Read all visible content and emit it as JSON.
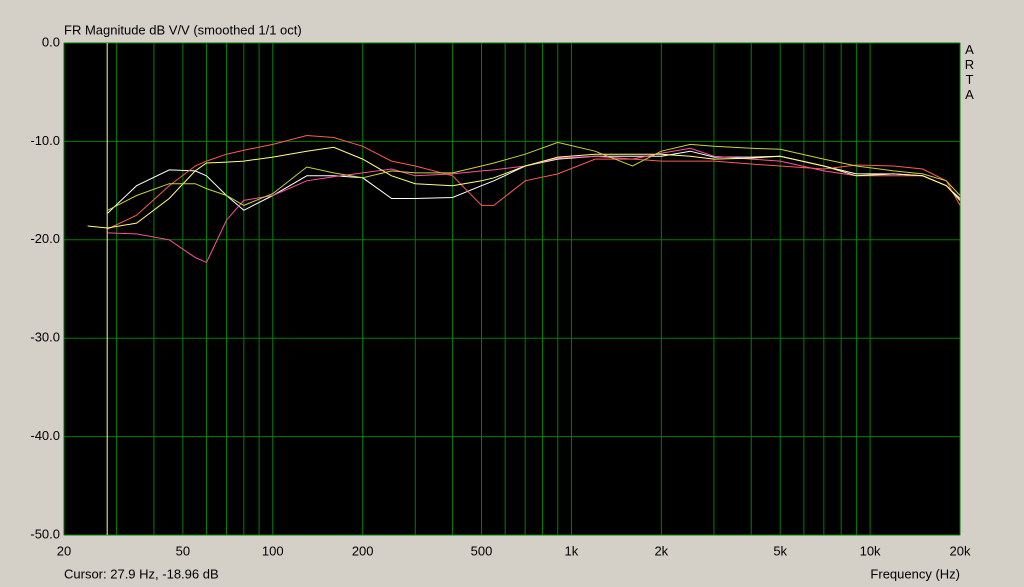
{
  "chart_data": {
    "type": "line",
    "title": "FR Magnitude dB V/V (smoothed 1/1 oct)",
    "x_label": "Frequency (Hz)",
    "watermark": "ARTA",
    "cursor": {
      "x": 27.9,
      "label": "Cursor: 27.9 Hz, -18.96 dB",
      "color": "#ffff80"
    },
    "x_log": true,
    "grid": true,
    "grid_color": "#008000",
    "background": "#000000",
    "xlim": [
      20,
      20000
    ],
    "xticks": [
      20,
      50,
      100,
      200,
      500,
      {
        "value": 1000,
        "label": "1k"
      },
      {
        "value": 2000,
        "label": "2k"
      },
      {
        "value": 5000,
        "label": "5k"
      },
      {
        "value": 10000,
        "label": "10k"
      },
      {
        "value": 20000,
        "label": "20k"
      }
    ],
    "x_minor_grid": [
      30,
      40,
      60,
      70,
      80,
      90,
      300,
      400,
      600,
      700,
      800,
      900,
      3000,
      4000,
      6000,
      7000,
      8000,
      9000
    ],
    "ylim": [
      -50,
      0
    ],
    "yticks": [
      {
        "value": 0,
        "label": "0.0"
      },
      {
        "value": -10,
        "label": "-10.0"
      },
      {
        "value": -20,
        "label": "-20.0"
      },
      {
        "value": -30,
        "label": "-30.0"
      },
      {
        "value": -40,
        "label": "-40.0"
      },
      {
        "value": -50,
        "label": "-50.0"
      }
    ],
    "x": [
      24,
      28,
      35,
      45,
      55,
      60,
      70,
      80,
      100,
      130,
      160,
      200,
      250,
      300,
      400,
      500,
      550,
      700,
      900,
      1200,
      1600,
      2000,
      2500,
      3000,
      4000,
      5000,
      7000,
      9000,
      12000,
      15000,
      18000,
      20000
    ],
    "series": [
      {
        "color": "#ffffff",
        "values": [
          null,
          -17.3,
          -14.5,
          -12.9,
          -13,
          -13.5,
          -15.5,
          -17,
          -15.5,
          -13.5,
          -13.5,
          -13.7,
          -15.8,
          -15.8,
          -15.7,
          -14.5,
          -14,
          -12.5,
          -11.8,
          -11.5,
          -11.5,
          -11.5,
          -11,
          -11.6,
          -11.6,
          -11.5,
          -12.5,
          -13.3,
          -13.3,
          -13.5,
          -14.5,
          -15.8
        ]
      },
      {
        "color": "#ff50a0",
        "values": [
          null,
          -19.3,
          -19.4,
          -20,
          -21.8,
          -22.3,
          -18,
          -16,
          -15.5,
          -14,
          -13.6,
          -13.2,
          -12.8,
          -13.5,
          -13.3,
          -13,
          -12.9,
          -12.5,
          -11.7,
          -11.5,
          -11.8,
          -11.2,
          -10.7,
          -11.5,
          -11.8,
          -12,
          -13,
          -13.5,
          -13.5,
          -13.5,
          -14.5,
          -16
        ]
      },
      {
        "color": "#ff5a50",
        "values": [
          null,
          -18.9,
          -17.5,
          -14.5,
          -12.5,
          -12,
          -11.3,
          -10.9,
          -10.3,
          -9.4,
          -9.6,
          -10.5,
          -12,
          -12.5,
          -13.5,
          -16.5,
          -16.5,
          -14,
          -13.3,
          -11.8,
          -11.8,
          -12,
          -12,
          -12,
          -12.3,
          -12.5,
          -12.8,
          -12.4,
          -12.5,
          -12.8,
          -14,
          -16.5
        ]
      },
      {
        "color": "#ffff80",
        "values": [
          -18.6,
          -18.8,
          -18.3,
          -15.8,
          -13,
          -12.2,
          -12.1,
          -12,
          -11.6,
          -11,
          -10.6,
          -11.8,
          -13.5,
          -14.3,
          -14.5,
          -14,
          -13.7,
          -12.5,
          -11.6,
          -11.3,
          -11.3,
          -11.3,
          -11.5,
          -11.8,
          -11.7,
          -11.5,
          -12.5,
          -13.5,
          -13.3,
          -13.5,
          -14.5,
          -16
        ]
      },
      {
        "color": "#c8d040",
        "values": [
          null,
          -17,
          -15.5,
          -14.3,
          -14.3,
          -14.8,
          -15.5,
          -16.5,
          -15.3,
          -12.6,
          -13.2,
          -13.7,
          -13,
          -13.2,
          -13.2,
          -12.5,
          -12.2,
          -11.3,
          -10.1,
          -11,
          -12.5,
          -11,
          -10.3,
          -10.5,
          -10.7,
          -10.8,
          -11.8,
          -12.5,
          -13,
          -13.3,
          -14,
          -15.5
        ]
      }
    ]
  }
}
